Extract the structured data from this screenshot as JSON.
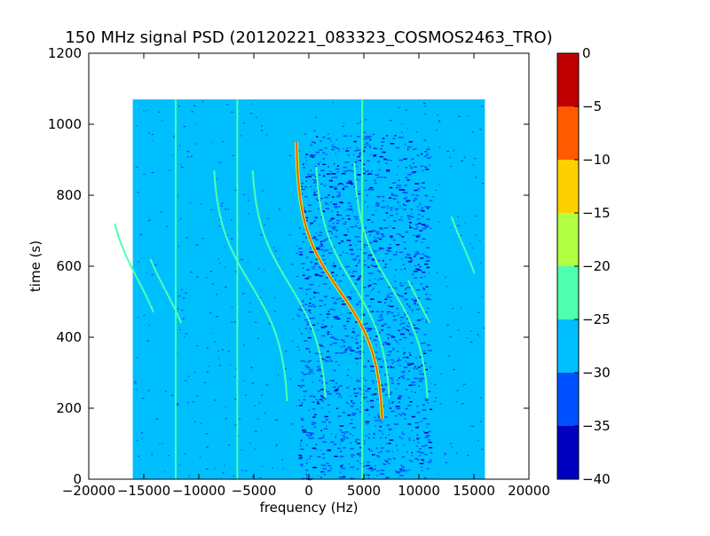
{
  "chart_data": {
    "type": "heatmap",
    "title": "150 MHz signal PSD (20120221_083323_COSMOS2463_TRO)",
    "xlabel": "frequency (Hz)",
    "ylabel": "time (s)",
    "xlim": [
      -20000,
      20000
    ],
    "ylim": [
      0,
      1200
    ],
    "x_ticks": [
      -20000,
      -15000,
      -10000,
      -5000,
      0,
      5000,
      10000,
      15000,
      20000
    ],
    "x_tick_labels": [
      "−20000",
      "−15000",
      "−10000",
      "−5000",
      "0",
      "5000",
      "10000",
      "15000",
      "20000"
    ],
    "y_ticks": [
      0,
      200,
      400,
      600,
      800,
      1000,
      1200
    ],
    "y_tick_labels": [
      "0",
      "200",
      "400",
      "600",
      "800",
      "1000",
      "1200"
    ],
    "data_extent": {
      "freq_min": -16000,
      "freq_max": 16000,
      "time_min": 0,
      "time_max": 1070
    },
    "background_level": -27.5,
    "grid": false,
    "colorbar": {
      "levels": [
        -40,
        -35,
        -30,
        -25,
        -20,
        -15,
        -10,
        -5,
        0
      ],
      "tick_labels": [
        "−40",
        "−35",
        "−30",
        "−25",
        "−20",
        "−15",
        "−10",
        "−5",
        "0"
      ],
      "colors": [
        "#0000c0",
        "#0050ff",
        "#00bfff",
        "#4dffaf",
        "#b0ff40",
        "#ffd000",
        "#ff5a00",
        "#c00000"
      ]
    },
    "noise_region": {
      "freq_range": [
        -1000,
        11000
      ],
      "time_range": [
        0,
        970
      ]
    },
    "vertical_lines": [
      {
        "freq": -12100,
        "time_range": [
          0,
          1070
        ],
        "level": -22.5
      },
      {
        "freq": -6500,
        "time_range": [
          0,
          1070
        ],
        "level": -22.5
      },
      {
        "freq": 4850,
        "time_range": [
          0,
          1070
        ],
        "level": -22.5
      }
    ],
    "tracks": [
      {
        "center_freq": 2800,
        "center_time": 530,
        "halfwidth_freq": 4000,
        "time_range": [
          170,
          950
        ],
        "level": -7.5
      },
      {
        "center_freq": -5300,
        "center_time": 550,
        "halfwidth_freq": 3500,
        "time_range": [
          220,
          870
        ],
        "level": -22.5
      },
      {
        "center_freq": -1800,
        "center_time": 550,
        "halfwidth_freq": 3500,
        "time_range": [
          230,
          870
        ],
        "level": -22.5
      },
      {
        "center_freq": 4000,
        "center_time": 550,
        "halfwidth_freq": 3500,
        "time_range": [
          230,
          880
        ],
        "level": -22.5
      },
      {
        "center_freq": 7500,
        "center_time": 540,
        "halfwidth_freq": 3500,
        "time_range": [
          230,
          890
        ],
        "level": -22.5
      },
      {
        "center_freq": -15500,
        "center_time": 560,
        "halfwidth_freq": 3000,
        "time_range": [
          470,
          720
        ],
        "level": -22.5
      },
      {
        "center_freq": -13000,
        "center_time": 530,
        "halfwidth_freq": 3000,
        "time_range": [
          440,
          620
        ],
        "level": -22.5
      },
      {
        "center_freq": 14000,
        "center_time": 660,
        "halfwidth_freq": 2500,
        "time_range": [
          580,
          740
        ],
        "level": -22.5
      },
      {
        "center_freq": 10000,
        "center_time": 500,
        "halfwidth_freq": 3000,
        "time_range": [
          440,
          560
        ],
        "level": -22.5
      }
    ]
  }
}
